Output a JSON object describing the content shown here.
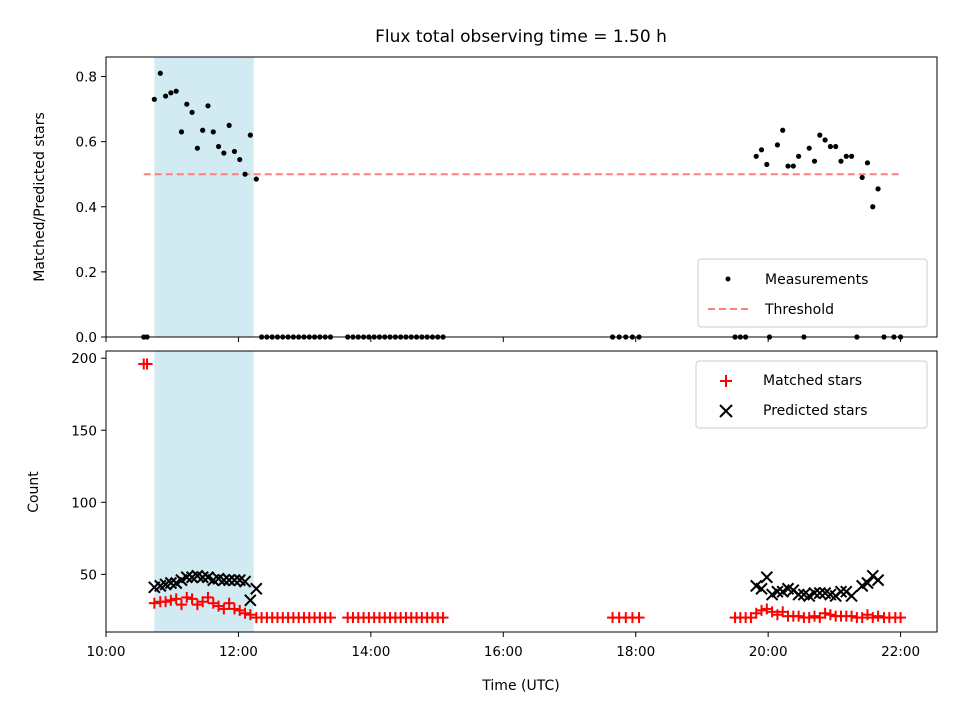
{
  "chart_data": {
    "title": "Flux total observing time = 1.50 h",
    "xlabel": "Time (UTC)",
    "x_unit": "hours UTC",
    "xlim": [
      10.0,
      22.55
    ],
    "x_ticks": [
      10,
      12,
      14,
      16,
      18,
      20,
      22
    ],
    "x_tick_labels": [
      "10:00",
      "12:00",
      "14:00",
      "16:00",
      "18:00",
      "20:00",
      "22:00"
    ],
    "shaded_interval": [
      10.73,
      12.23
    ],
    "shade_color": "#add8e6",
    "panels": [
      {
        "type": "scatter",
        "ylabel": "Matched/Predicted stars",
        "ylim": [
          0,
          0.86
        ],
        "y_ticks": [
          0.0,
          0.2,
          0.4,
          0.6,
          0.8
        ],
        "y_tick_labels": [
          "0.0",
          "0.2",
          "0.4",
          "0.6",
          "0.8"
        ],
        "legend_position": "lower-right",
        "series": [
          {
            "name": "Measurements",
            "marker": "dot",
            "color": "#000000",
            "points": [
              [
                10.57,
                0.0
              ],
              [
                10.62,
                0.0
              ],
              [
                10.73,
                0.73
              ],
              [
                10.82,
                0.81
              ],
              [
                10.9,
                0.74
              ],
              [
                10.98,
                0.75
              ],
              [
                11.06,
                0.755
              ],
              [
                11.14,
                0.63
              ],
              [
                11.22,
                0.715
              ],
              [
                11.3,
                0.69
              ],
              [
                11.38,
                0.58
              ],
              [
                11.46,
                0.635
              ],
              [
                11.54,
                0.71
              ],
              [
                11.62,
                0.63
              ],
              [
                11.7,
                0.585
              ],
              [
                11.78,
                0.565
              ],
              [
                11.86,
                0.65
              ],
              [
                11.94,
                0.57
              ],
              [
                12.02,
                0.545
              ],
              [
                12.1,
                0.5
              ],
              [
                12.18,
                0.62
              ],
              [
                12.27,
                0.485
              ],
              [
                12.35,
                0.0
              ],
              [
                12.43,
                0.0
              ],
              [
                12.51,
                0.0
              ],
              [
                12.59,
                0.0
              ],
              [
                12.67,
                0.0
              ],
              [
                12.75,
                0.0
              ],
              [
                12.83,
                0.0
              ],
              [
                12.91,
                0.0
              ],
              [
                12.99,
                0.0
              ],
              [
                13.07,
                0.0
              ],
              [
                13.15,
                0.0
              ],
              [
                13.23,
                0.0
              ],
              [
                13.31,
                0.0
              ],
              [
                13.39,
                0.0
              ],
              [
                13.65,
                0.0
              ],
              [
                13.73,
                0.0
              ],
              [
                13.81,
                0.0
              ],
              [
                13.89,
                0.0
              ],
              [
                13.97,
                0.0
              ],
              [
                14.05,
                0.0
              ],
              [
                14.13,
                0.0
              ],
              [
                14.21,
                0.0
              ],
              [
                14.29,
                0.0
              ],
              [
                14.37,
                0.0
              ],
              [
                14.45,
                0.0
              ],
              [
                14.53,
                0.0
              ],
              [
                14.61,
                0.0
              ],
              [
                14.69,
                0.0
              ],
              [
                14.77,
                0.0
              ],
              [
                14.85,
                0.0
              ],
              [
                14.93,
                0.0
              ],
              [
                15.01,
                0.0
              ],
              [
                15.09,
                0.0
              ],
              [
                17.65,
                0.0
              ],
              [
                17.75,
                0.0
              ],
              [
                17.85,
                0.0
              ],
              [
                17.95,
                0.0
              ],
              [
                18.05,
                0.0
              ],
              [
                19.5,
                0.0
              ],
              [
                19.58,
                0.0
              ],
              [
                19.66,
                0.0
              ],
              [
                19.82,
                0.555
              ],
              [
                19.9,
                0.575
              ],
              [
                19.98,
                0.53
              ],
              [
                20.02,
                0.0
              ],
              [
                20.14,
                0.59
              ],
              [
                20.22,
                0.635
              ],
              [
                20.3,
                0.525
              ],
              [
                20.38,
                0.525
              ],
              [
                20.46,
                0.555
              ],
              [
                20.54,
                0.0
              ],
              [
                20.62,
                0.58
              ],
              [
                20.7,
                0.54
              ],
              [
                20.78,
                0.62
              ],
              [
                20.86,
                0.605
              ],
              [
                20.94,
                0.585
              ],
              [
                21.02,
                0.585
              ],
              [
                21.1,
                0.54
              ],
              [
                21.18,
                0.555
              ],
              [
                21.26,
                0.555
              ],
              [
                21.34,
                0.0
              ],
              [
                21.42,
                0.49
              ],
              [
                21.5,
                0.535
              ],
              [
                21.58,
                0.4
              ],
              [
                21.66,
                0.455
              ],
              [
                21.75,
                0.0
              ],
              [
                21.9,
                0.0
              ],
              [
                22.0,
                0.0
              ]
            ]
          },
          {
            "name": "Threshold",
            "marker": "dashed-line",
            "color": "#ff7f7f",
            "points": [
              [
                10.57,
                0.5
              ],
              [
                22.0,
                0.5
              ]
            ]
          }
        ]
      },
      {
        "type": "scatter",
        "ylabel": "Count",
        "ylim": [
          10,
          205
        ],
        "y_ticks": [
          50,
          100,
          150,
          200
        ],
        "y_tick_labels": [
          "50",
          "100",
          "150",
          "200"
        ],
        "legend_position": "top-right",
        "series": [
          {
            "name": "Matched stars",
            "marker": "plus",
            "color": "#ff0000",
            "points": [
              [
                10.57,
                196
              ],
              [
                10.62,
                196
              ],
              [
                10.73,
                30
              ],
              [
                10.82,
                31
              ],
              [
                10.9,
                31
              ],
              [
                10.98,
                32
              ],
              [
                11.06,
                33
              ],
              [
                11.14,
                29
              ],
              [
                11.22,
                34
              ],
              [
                11.3,
                33
              ],
              [
                11.38,
                29
              ],
              [
                11.46,
                31
              ],
              [
                11.54,
                34
              ],
              [
                11.62,
                30
              ],
              [
                11.7,
                28
              ],
              [
                11.78,
                26
              ],
              [
                11.86,
                30
              ],
              [
                11.94,
                26
              ],
              [
                12.02,
                25
              ],
              [
                12.1,
                23
              ],
              [
                12.18,
                22
              ],
              [
                12.27,
                20
              ],
              [
                12.35,
                20
              ],
              [
                12.43,
                20
              ],
              [
                12.51,
                20
              ],
              [
                12.59,
                20
              ],
              [
                12.67,
                20
              ],
              [
                12.75,
                20
              ],
              [
                12.83,
                20
              ],
              [
                12.91,
                20
              ],
              [
                12.99,
                20
              ],
              [
                13.07,
                20
              ],
              [
                13.15,
                20
              ],
              [
                13.23,
                20
              ],
              [
                13.31,
                20
              ],
              [
                13.39,
                20
              ],
              [
                13.65,
                20
              ],
              [
                13.73,
                20
              ],
              [
                13.81,
                20
              ],
              [
                13.89,
                20
              ],
              [
                13.97,
                20
              ],
              [
                14.05,
                20
              ],
              [
                14.13,
                20
              ],
              [
                14.21,
                20
              ],
              [
                14.29,
                20
              ],
              [
                14.37,
                20
              ],
              [
                14.45,
                20
              ],
              [
                14.53,
                20
              ],
              [
                14.61,
                20
              ],
              [
                14.69,
                20
              ],
              [
                14.77,
                20
              ],
              [
                14.85,
                20
              ],
              [
                14.93,
                20
              ],
              [
                15.01,
                20
              ],
              [
                15.09,
                20
              ],
              [
                17.65,
                20
              ],
              [
                17.75,
                20
              ],
              [
                17.85,
                20
              ],
              [
                17.95,
                20
              ],
              [
                18.05,
                20
              ],
              [
                19.5,
                20
              ],
              [
                19.58,
                20
              ],
              [
                19.66,
                20
              ],
              [
                19.74,
                20
              ],
              [
                19.82,
                23
              ],
              [
                19.9,
                25
              ],
              [
                19.98,
                26
              ],
              [
                20.06,
                24
              ],
              [
                20.14,
                22
              ],
              [
                20.22,
                24
              ],
              [
                20.3,
                21
              ],
              [
                20.38,
                21
              ],
              [
                20.46,
                21
              ],
              [
                20.54,
                20
              ],
              [
                20.62,
                20
              ],
              [
                20.7,
                21
              ],
              [
                20.78,
                20
              ],
              [
                20.86,
                23
              ],
              [
                20.94,
                22
              ],
              [
                21.02,
                21
              ],
              [
                21.1,
                21
              ],
              [
                21.18,
                21
              ],
              [
                21.26,
                21
              ],
              [
                21.34,
                20
              ],
              [
                21.42,
                20
              ],
              [
                21.5,
                22
              ],
              [
                21.58,
                20
              ],
              [
                21.66,
                21
              ],
              [
                21.75,
                20
              ],
              [
                21.83,
                20
              ],
              [
                21.92,
                20
              ],
              [
                22.0,
                20
              ]
            ]
          },
          {
            "name": "Predicted stars",
            "marker": "x",
            "color": "#000000",
            "points": [
              [
                10.73,
                41
              ],
              [
                10.82,
                42
              ],
              [
                10.9,
                43
              ],
              [
                10.98,
                44
              ],
              [
                11.06,
                44
              ],
              [
                11.14,
                46
              ],
              [
                11.22,
                48
              ],
              [
                11.3,
                48
              ],
              [
                11.38,
                49
              ],
              [
                11.46,
                48
              ],
              [
                11.54,
                48
              ],
              [
                11.62,
                46
              ],
              [
                11.7,
                47
              ],
              [
                11.78,
                46
              ],
              [
                11.86,
                46
              ],
              [
                11.94,
                46
              ],
              [
                12.02,
                46
              ],
              [
                12.1,
                45
              ],
              [
                12.18,
                32
              ],
              [
                12.27,
                40
              ],
              [
                19.82,
                42
              ],
              [
                19.9,
                40
              ],
              [
                19.98,
                48
              ],
              [
                20.06,
                36
              ],
              [
                20.14,
                38
              ],
              [
                20.22,
                38
              ],
              [
                20.3,
                40
              ],
              [
                20.38,
                39
              ],
              [
                20.46,
                36
              ],
              [
                20.54,
                36
              ],
              [
                20.62,
                35
              ],
              [
                20.7,
                37
              ],
              [
                20.78,
                37
              ],
              [
                20.86,
                37
              ],
              [
                20.94,
                36
              ],
              [
                21.02,
                35
              ],
              [
                21.1,
                38
              ],
              [
                21.18,
                38
              ],
              [
                21.26,
                35
              ],
              [
                21.42,
                42
              ],
              [
                21.5,
                44
              ],
              [
                21.58,
                49
              ],
              [
                21.66,
                46
              ]
            ]
          }
        ]
      }
    ]
  }
}
